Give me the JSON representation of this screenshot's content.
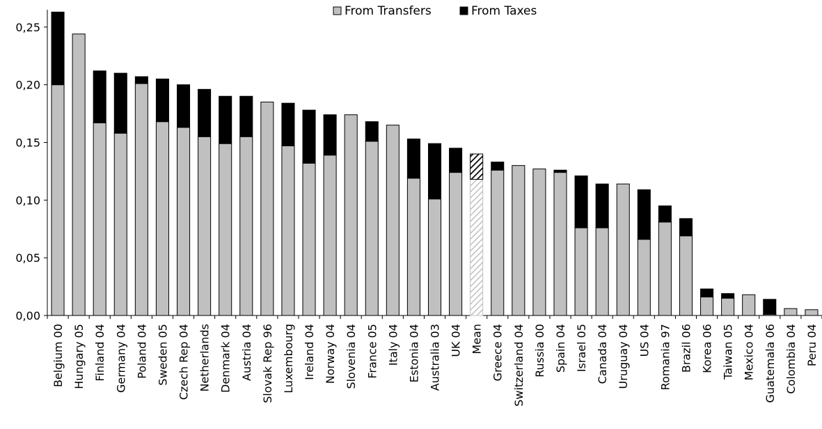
{
  "chart_data": {
    "type": "bar",
    "stacked": true,
    "title": "",
    "xlabel": "",
    "ylabel": "",
    "ylim": [
      0,
      0.265
    ],
    "yticks": [
      0.0,
      0.05,
      0.1,
      0.15,
      0.2,
      0.25
    ],
    "ytick_labels": [
      "0,00",
      "0,05",
      "0,10",
      "0,15",
      "0,20",
      "0,25"
    ],
    "grid": false,
    "legend_position": "top-center",
    "categories": [
      "Belgium 00",
      "Hungary 05",
      "Finland 04",
      "Germany 04",
      "Poland 04",
      "Sweden 05",
      "Czech Rep 04",
      "Netherlands",
      "Denmark 04",
      "Austria 04",
      "Slovak Rep 96",
      "Luxembourg",
      "Ireland 04",
      "Norway 04",
      "Slovenia 04",
      "France 05",
      "Italy 04",
      "Estonia 04",
      "Australia 03",
      "UK 04",
      "Mean",
      "Greece 04",
      "Switzerland 04",
      "Russia 00",
      "Spain 04",
      "Israel 05",
      "Canada 04",
      "Uruguay 04",
      "US 04",
      "Romania 97",
      "Brazil 06",
      "Korea 06",
      "Taiwan 05",
      "Mexico 04",
      "Guatemala 06",
      "Colombia 04",
      "Peru 04"
    ],
    "highlight_category": "Mean",
    "series": [
      {
        "name": "From Transfers",
        "color": "#c0c0c0",
        "values": [
          0.2,
          0.244,
          0.167,
          0.158,
          0.201,
          0.168,
          0.163,
          0.155,
          0.149,
          0.155,
          0.185,
          0.147,
          0.132,
          0.139,
          0.174,
          0.151,
          0.165,
          0.119,
          0.101,
          0.124,
          0.118,
          0.126,
          0.13,
          0.127,
          0.124,
          0.076,
          0.076,
          0.114,
          0.066,
          0.081,
          0.069,
          0.016,
          0.015,
          0.018,
          0.001,
          0.006,
          0.005
        ]
      },
      {
        "name": "From Taxes",
        "color": "#000000",
        "values": [
          0.063,
          0.0,
          0.045,
          0.052,
          0.006,
          0.037,
          0.037,
          0.041,
          0.041,
          0.035,
          0.0,
          0.037,
          0.046,
          0.035,
          0.0,
          0.017,
          0.0,
          0.034,
          0.048,
          0.021,
          0.022,
          0.007,
          0.0,
          0.0,
          0.002,
          0.045,
          0.038,
          0.0,
          0.043,
          0.014,
          0.015,
          0.007,
          0.004,
          0.0,
          0.013,
          0.0,
          0.0
        ]
      }
    ]
  }
}
